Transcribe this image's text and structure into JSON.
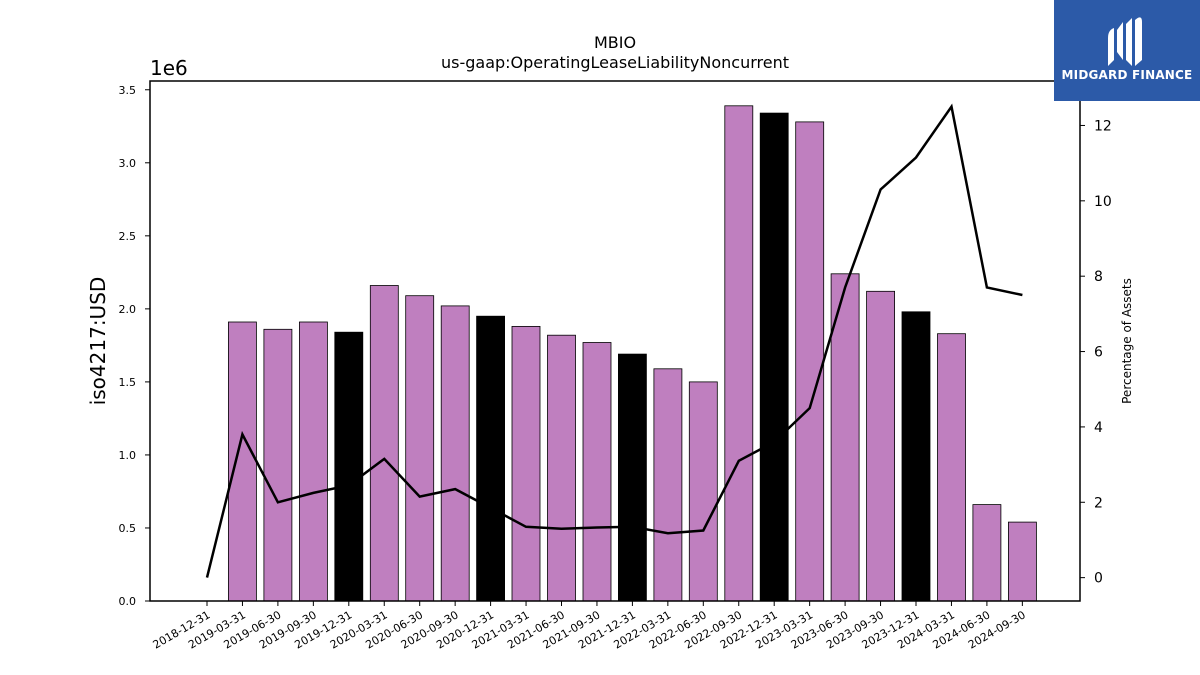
{
  "brand": {
    "name": "MIDGARD FINANCE",
    "bg_color": "#2c5aa8",
    "icon": "midgard-logo-icon"
  },
  "chart_data": {
    "type": "bar",
    "title": "MBIO",
    "subtitle": "us-gaap:OperatingLeaseLiabilityNoncurrent",
    "ylabel": "iso4217:USD",
    "y_multiplier_label": "1e6",
    "y2label": "Percentage of Assets",
    "categories": [
      "2018-12-31",
      "2019-03-31",
      "2019-06-30",
      "2019-09-30",
      "2019-12-31",
      "2020-03-31",
      "2020-06-30",
      "2020-09-30",
      "2020-12-31",
      "2021-03-31",
      "2021-06-30",
      "2021-09-30",
      "2021-12-31",
      "2022-03-31",
      "2022-06-30",
      "2022-09-30",
      "2022-12-31",
      "2023-03-31",
      "2023-06-30",
      "2023-09-30",
      "2023-12-31",
      "2024-03-31",
      "2024-06-30",
      "2024-09-30"
    ],
    "series": [
      {
        "type": "bar",
        "axis": "left",
        "values": [
          null,
          1910000,
          1860000,
          1910000,
          1840000,
          2160000,
          2090000,
          2020000,
          1950000,
          1880000,
          1820000,
          1770000,
          1690000,
          1590000,
          1500000,
          3390000,
          3340000,
          3280000,
          2240000,
          2120000,
          1980000,
          1830000,
          660000,
          540000
        ],
        "colors": [
          "#bf7fbf",
          "#bf7fbf",
          "#bf7fbf",
          "#bf7fbf",
          "#000000",
          "#bf7fbf",
          "#bf7fbf",
          "#bf7fbf",
          "#000000",
          "#bf7fbf",
          "#bf7fbf",
          "#bf7fbf",
          "#000000",
          "#bf7fbf",
          "#bf7fbf",
          "#bf7fbf",
          "#000000",
          "#bf7fbf",
          "#bf7fbf",
          "#bf7fbf",
          "#000000",
          "#bf7fbf",
          "#bf7fbf",
          "#bf7fbf"
        ]
      },
      {
        "type": "line",
        "axis": "right",
        "color": "#000000",
        "values": [
          0.0,
          3.8,
          2.0,
          2.25,
          2.45,
          3.15,
          2.15,
          2.35,
          1.85,
          1.35,
          1.3,
          1.33,
          1.35,
          1.18,
          1.25,
          3.1,
          3.6,
          4.5,
          7.7,
          10.3,
          11.15,
          12.5,
          7.7,
          7.5
        ]
      }
    ],
    "ylim": [
      0,
      3560000
    ],
    "yticks": [
      0,
      500000,
      1000000,
      1500000,
      2000000,
      2500000,
      3000000,
      3500000
    ],
    "ytick_labels": [
      "0.0",
      "0.5",
      "1.0",
      "1.5",
      "2.0",
      "2.5",
      "3.0",
      "3.5"
    ],
    "y2lim": [
      -0.62,
      13.18
    ],
    "y2ticks": [
      0,
      2,
      4,
      6,
      8,
      10,
      12
    ],
    "y2tick_labels": [
      "0",
      "2",
      "4",
      "6",
      "8",
      "10",
      "12"
    ],
    "grid": false,
    "legend": "none"
  }
}
